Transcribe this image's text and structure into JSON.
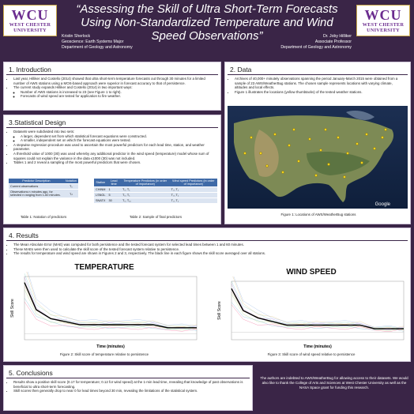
{
  "header": {
    "logo_big": "WCU",
    "logo_line1": "WEST CHESTER",
    "logo_line2": "UNIVERSITY",
    "title": "“Assessing the Skill of Ultra Short-Term Forecasts Using Non-Standardized Temperature and Wind Speed Observations”",
    "author_left": [
      "Kristin Sherlock",
      "Geoscience: Earth Systems Major",
      "Department of Geology and Astronomy"
    ],
    "author_right": [
      "Dr. Joby Hilliker",
      "Associate Professor",
      "Department of Geology and Astronomy"
    ]
  },
  "intro": {
    "heading": "1. Introduction",
    "bullets": [
      "Last year, Hilliker and Costello (2014) showed that ultra short-term temperature forecasts out through 30 minutes for a limited number of AWS stations using a MOS-based approach were superior in forecast accuracy to that of persistence.",
      "The current study expands Hilliker and Costello (2014) in two important ways:"
    ],
    "sub": [
      "Number of AWS stations is increased to 23 (see Figure 1 to right).",
      "Forecasts of wind speed are tested for application to fire weather."
    ]
  },
  "data_sec": {
    "heading": "2. Data",
    "bullets": [
      "Archives of 40,000+ minutely observations spanning the period January-March 2015 were obtained from a sample of 23 AWS/WeatherBug stations. The chosen sample represents locations with varying climate, altitudes and local effects.",
      "Figure 1 illustrates the locations (yellow thumbtacks) of the tested weather stations."
    ],
    "map_watermark": "Google",
    "caption": "Figure 1: Locations of AWS/WeatherBug stations"
  },
  "stat": {
    "heading": "3.Statistical Design",
    "bullets": [
      "Datasets were subdivided into two sets:",
      "A stepwise regression procedure was used to ascertain the most powerful predictors for each lead time, station, and weather parameter.",
      "A threshold value of 1000 (30) was used whereby any additional predictor in the wind speed (temperature) model whose sum of squares could not explain the variance in the data ≤1000 (30) was not included.",
      "Tables 1 and 2 reveal a sampling of the most powerful predictors that were chosen."
    ],
    "sub": [
      "A larger, dependent set from which statistical forecast equations were constructed.",
      "A smaller, independent set on which the forecast equations were tested."
    ],
    "table1": {
      "headers": [
        "Predictor Description",
        "Notation"
      ],
      "rows": [
        [
          "Current observations",
          "T₀"
        ],
        [
          "Observations n minutes ago, for selected n ranging from 1-60 minutes.",
          "Tₙ"
        ]
      ]
    },
    "table1_caption": "Table 1: Notation of predictors",
    "table2": {
      "headers": [
        "Station",
        "Lead time",
        "Temperature Predictors (in order of importance)",
        "Wind speed Predictors (in order of importance)"
      ],
      "rows": [
        [
          "CHINM",
          "1",
          "T₀, T₁",
          "T₀, T₁"
        ],
        [
          "LSNGL",
          "5",
          "T₀, T₁",
          "T₀, T₁"
        ],
        [
          "SNATX",
          "30",
          "T₀, T₁₀",
          "T₀, T₁"
        ]
      ]
    },
    "table2_caption": "Table 2: Sample of final predictors"
  },
  "results": {
    "heading": "4. Results",
    "bullets": [
      "The Mean Absolute Error (MAE) was computed for both persistence and the tested forecast system for selected lead times between 1 and 60 minutes.",
      "These MAEs were then used to calculate the skill score of the tested forecast system relative to persistence.",
      "The results for temperature and wind speed are shown in Figures 2 and 3, respectively. The black line in each figure shows the skill score averaged over all stations."
    ],
    "fig2_caption": "Figure 2: Skill score of temperature relative to persistence",
    "fig3_caption": "Figure 3: Skill score of wind speed relative to persistence"
  },
  "chart_data": [
    {
      "type": "line",
      "title": "TEMPERATURE",
      "xlabel": "Time (minutes)",
      "ylabel": "Skill Score",
      "x": [
        1,
        5,
        10,
        15,
        20,
        25,
        30,
        35,
        40,
        45,
        50,
        55,
        60
      ],
      "series": [
        {
          "values": [
            0.17,
            0.08,
            0.05,
            0.04,
            0.03,
            0.03,
            0.03,
            0.03,
            0.03,
            0.03,
            0.02,
            0.02,
            0.02
          ],
          "color": "#000000"
        }
      ]
    },
    {
      "type": "line",
      "title": "WIND SPEED",
      "xlabel": "Time (minutes)",
      "ylabel": "Skill Score",
      "x": [
        1,
        5,
        10,
        15,
        20,
        25,
        30,
        35,
        40,
        45,
        50,
        55,
        60
      ],
      "series": [
        {
          "values": [
            0.12,
            0.06,
            0.04,
            0.03,
            0.02,
            0.02,
            0.02,
            0.02,
            0.02,
            0.02,
            0.01,
            0.01,
            0.01
          ],
          "color": "#000000"
        }
      ]
    }
  ],
  "conclusions": {
    "heading": "5. Conclusions",
    "bullets": [
      "Results show a positive skill score (0.17 for temperature; 0.12 for wind speed) at the 1-min lead time, revealing that knowledge of past observations is beneficial to ultra short-term forecasting.",
      "Skill scores then generally drop to near 0 for lead times beyond 30 min, revealing the limitations of the statistical system."
    ]
  },
  "ack": "The authors are indebted to AWS/WeatherBug for allowing access to their datasets. We would also like to thank the College of Arts and Sciences at West Chester University as well as the NASA Space grant for funding this research."
}
